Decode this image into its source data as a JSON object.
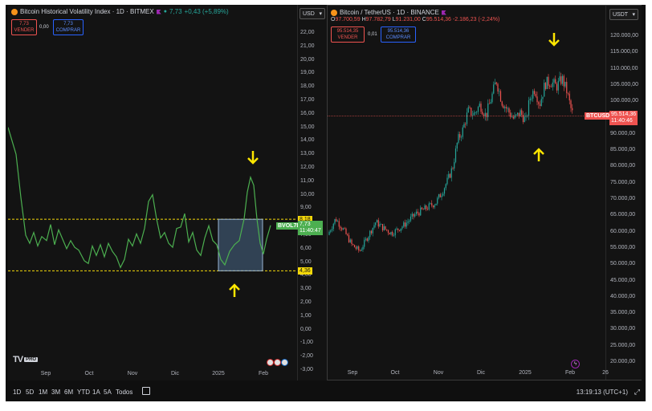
{
  "left_chart": {
    "symbol_title": "Bitcoin Historical Volatility Index · 1D · BITMEX",
    "last_value": "7,73",
    "change": "+0,43 (+5,89%)",
    "sell_price": "7,73",
    "sell_label": "VENDER",
    "spread": "0,00",
    "buy_price": "7,73",
    "buy_label": "COMPRAR",
    "currency": "USD",
    "y_ticks": [
      "22,00",
      "21,00",
      "20,00",
      "19,00",
      "18,00",
      "17,00",
      "16,00",
      "15,00",
      "14,00",
      "13,00",
      "12,00",
      "11,00",
      "10,00",
      "9,00",
      "8,00",
      "7,00",
      "6,00",
      "5,00",
      "4,00",
      "3,00",
      "2,00",
      "1,00",
      "0,00",
      "-1,00",
      "-2,00",
      "-3,00"
    ],
    "x_ticks": [
      "Sep",
      "Oct",
      "Nov",
      "Dic",
      "2025",
      "Feb"
    ],
    "level_upper": "8,18",
    "level_lower": "4,36",
    "series_label": "BVOL7D",
    "series_value": "7,73",
    "countdown": "11:40:47",
    "logo_text": "TV",
    "logo_badge": "PRO",
    "colors": {
      "line": "#4caf50",
      "levels": "#f5d90a",
      "arrow": "#ffe600",
      "box_fill": "#4a6a8a"
    }
  },
  "right_chart": {
    "symbol_title": "Bitcoin / TetherUS · 1D · BINANCE",
    "ohlc": {
      "open_label": "O",
      "open": "97.700,59",
      "high_label": "H",
      "high": "97.782,79",
      "low_label": "L",
      "low": "91.231,00",
      "close_label": "C",
      "close": "95.514,36",
      "change": "-2.186,23 (-2,24%)"
    },
    "sell_price": "95.514,35",
    "sell_label": "VENDER",
    "spread": "0,01",
    "buy_price": "95.514,36",
    "buy_label": "COMPRAR",
    "currency": "USDT",
    "y_ticks": [
      "120.000,00",
      "115.000,00",
      "110.000,00",
      "105.000,00",
      "100.000,00",
      "95.000,00",
      "90.000,00",
      "85.000,00",
      "80.000,00",
      "75.000,00",
      "70.000,00",
      "65.000,00",
      "60.000,00",
      "55.000,00",
      "50.000,00",
      "45.000,00",
      "40.000,00",
      "35.000,00",
      "30.000,00",
      "25.000,00",
      "20.000,00"
    ],
    "x_ticks": [
      "Sep",
      "Oct",
      "Nov",
      "Dic",
      "2025",
      "Feb",
      "26"
    ],
    "price_label_symbol": "BTCUSDT",
    "price_label_value": "95.514,36",
    "countdown": "11:40:46",
    "colors": {
      "up": "#26a69a",
      "down": "#ef5350",
      "arrow": "#ffe600"
    }
  },
  "bottom_bar": {
    "periods": [
      "1D",
      "5D",
      "1M",
      "3M",
      "6M",
      "YTD",
      "1A",
      "5A",
      "Todos"
    ],
    "clock": "13:19:13 (UTC+1)"
  }
}
